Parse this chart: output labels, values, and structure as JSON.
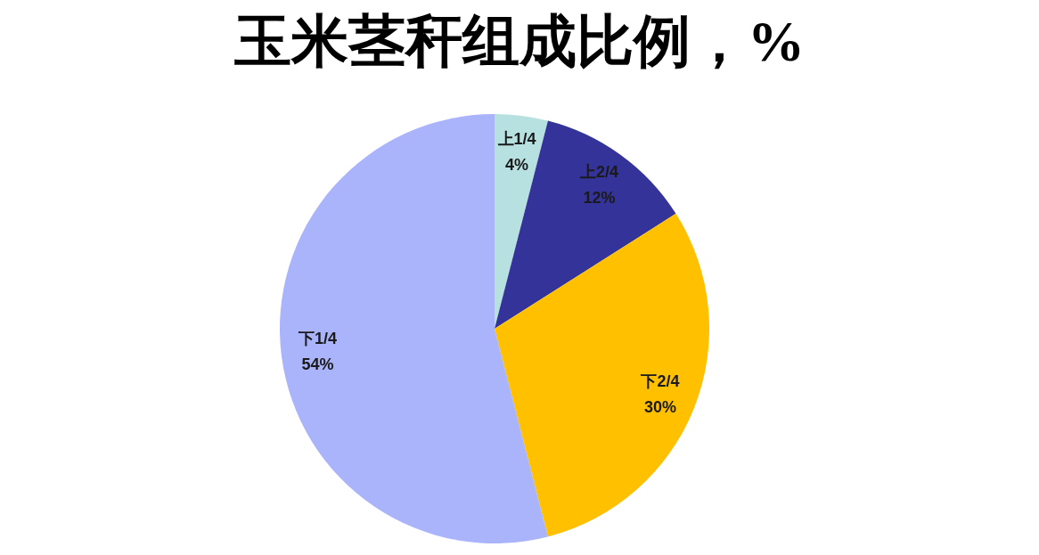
{
  "chart_data": {
    "type": "pie",
    "title": "玉米茎秆组成比例，%",
    "categories": [
      "上1/4",
      "上2/4",
      "下2/4",
      "下1/4"
    ],
    "values": [
      4,
      12,
      30,
      54
    ],
    "value_labels": [
      "4%",
      "12%",
      "30%",
      "54%"
    ],
    "colors": [
      "#b7e1e0",
      "#333399",
      "#ffc000",
      "#aab4fb"
    ]
  }
}
